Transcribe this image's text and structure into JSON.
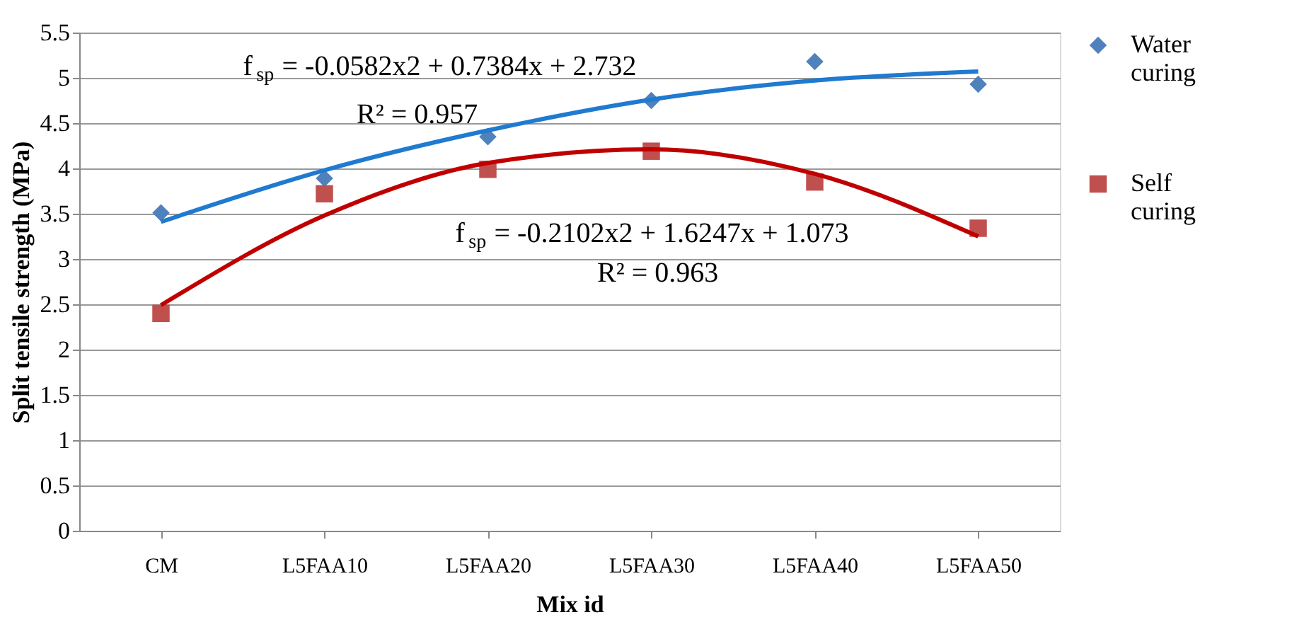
{
  "chart_data": {
    "type": "scatter",
    "xlabel": "Mix id",
    "ylabel": "Split tensile strength (MPa)",
    "categories": [
      "CM",
      "L5FAA10",
      "L5FAA20",
      "L5FAA30",
      "L5FAA40",
      "L5FAA50"
    ],
    "series": [
      {
        "name": "Water curing",
        "marker": "diamond",
        "color": "#4f81bd",
        "values": [
          3.51,
          3.89,
          4.35,
          4.75,
          5.18,
          4.93
        ]
      },
      {
        "name": "Self curing",
        "marker": "square",
        "color": "#c0504d",
        "values": [
          2.4,
          3.72,
          3.99,
          4.19,
          3.85,
          3.34
        ]
      },
      {
        "type": "line",
        "color": "#1f7ad0",
        "x": [
          "CM",
          "L5FAA10",
          "L5FAA20",
          "L5FAA30",
          "L5FAA40",
          "L5FAA50"
        ],
        "values": [
          3.41,
          3.98,
          4.42,
          4.76,
          4.97,
          5.07
        ]
      },
      {
        "type": "line",
        "color": "#c00000",
        "x": [
          "CM",
          "L5FAA10",
          "L5FAA20",
          "L5FAA30",
          "L5FAA40",
          "L5FAA50"
        ],
        "values": [
          2.49,
          3.48,
          4.06,
          4.21,
          3.94,
          3.25
        ]
      }
    ],
    "ylim": [
      0,
      5.5
    ],
    "yticks": [
      0,
      0.5,
      1,
      1.5,
      2,
      2.5,
      3,
      3.5,
      4,
      4.5,
      5,
      5.5
    ],
    "grid": "y",
    "legend": "right",
    "annotations": [
      "f$_{sp}$ = -0.0582x2 + 0.7384x + 2.732",
      "R² = 0.957",
      "f$_{sp}$ = -0.2102x2 + 1.6247x + 1.073",
      "R² = 0.963"
    ]
  }
}
